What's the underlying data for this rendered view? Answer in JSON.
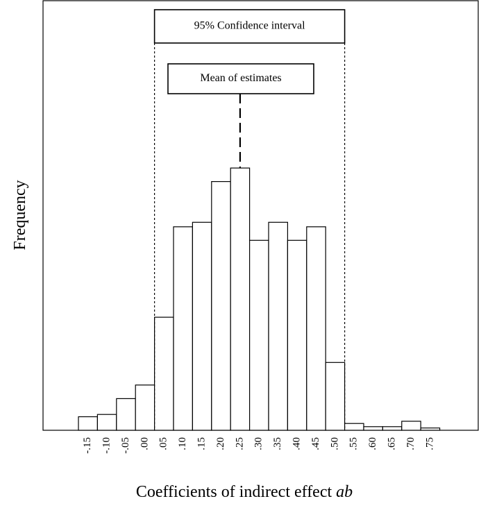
{
  "chart_data": {
    "type": "bar",
    "xlabel_prefix": "Coefficients of indirect effect",
    "xlabel_italic": "ab",
    "ylabel": "Frequency",
    "categories": [
      "-.15",
      "-.10",
      "-.05",
      ".00",
      ".05",
      ".10",
      ".15",
      ".20",
      ".25",
      ".30",
      ".35",
      ".40",
      ".45",
      ".50",
      ".55",
      ".60",
      ".65",
      ".70",
      ".75"
    ],
    "values": [
      3,
      3.5,
      7,
      10,
      25,
      45,
      46,
      55,
      58,
      42,
      46,
      42,
      45,
      15,
      1.5,
      0.8,
      0.8,
      2,
      0.5
    ],
    "ylim": [
      0,
      95
    ],
    "y_ticks_shown": false,
    "grid": false,
    "annotations": {
      "ci_label": "95% Confidence interval",
      "ci_range": [
        ".05",
        ".50"
      ],
      "mean_label": "Mean of estimates",
      "mean_at": ".25"
    },
    "colors": {
      "bar_fill": "#ffffff",
      "bar_stroke": "#000000"
    }
  }
}
